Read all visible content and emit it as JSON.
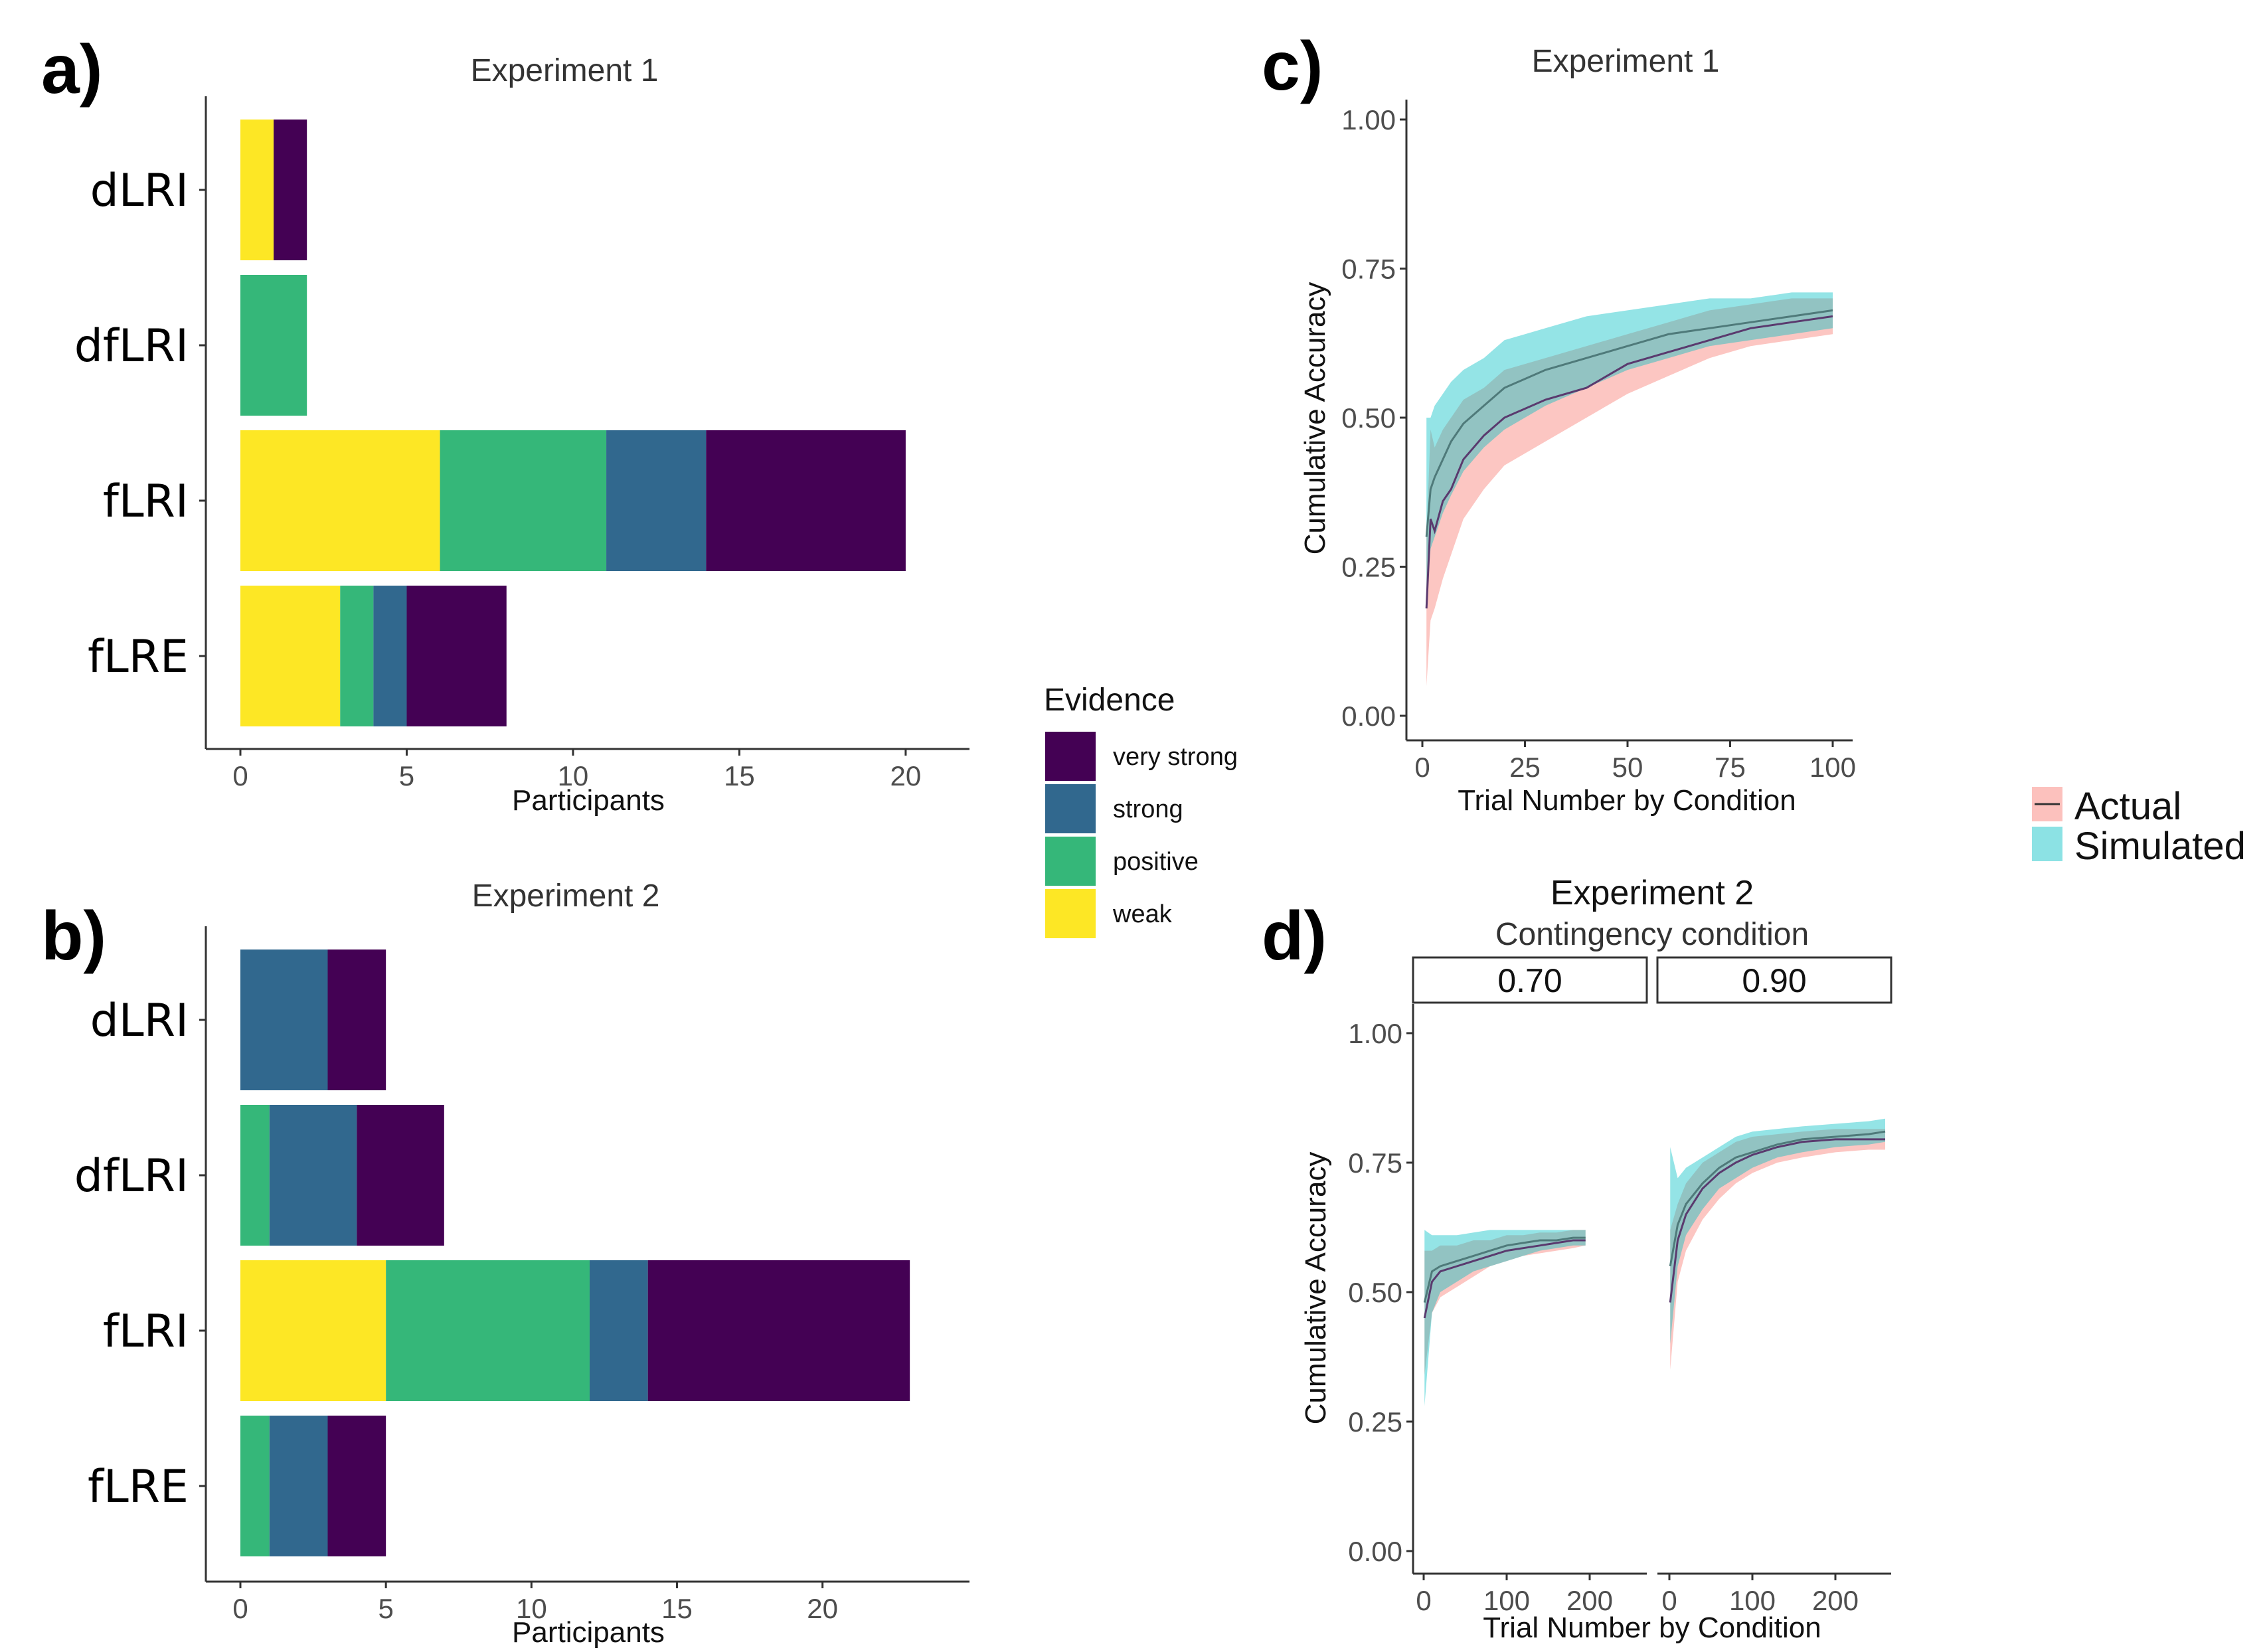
{
  "colors": {
    "very strong": "#440154",
    "strong": "#31688e",
    "positive": "#35b779",
    "weak": "#fde725",
    "actual": "#f8766d",
    "simulated": "#00bfc4"
  },
  "panel_letters": [
    "a)",
    "b)",
    "c)",
    "d)"
  ],
  "evidence_legend": {
    "title": "Evidence",
    "items": [
      "very strong",
      "strong",
      "positive",
      "weak"
    ]
  },
  "source_legend": {
    "items": [
      "Actual",
      "Simulated"
    ]
  },
  "chart_data": [
    {
      "panel": "a",
      "type": "bar",
      "orientation": "horizontal",
      "stacked": true,
      "title": "Experiment 1",
      "xlabel": "Participants",
      "ylabel": "",
      "categories": [
        "dLRI",
        "dfLRI",
        "fLRI",
        "fLRE"
      ],
      "xlim": [
        0,
        21
      ],
      "xticks": [
        0,
        5,
        10,
        15,
        20
      ],
      "series": [
        {
          "name": "weak",
          "values": [
            1,
            0,
            6,
            3
          ]
        },
        {
          "name": "positive",
          "values": [
            0,
            2,
            5,
            1
          ]
        },
        {
          "name": "strong",
          "values": [
            0,
            0,
            3,
            1
          ]
        },
        {
          "name": "very strong",
          "values": [
            1,
            0,
            6,
            3
          ]
        }
      ]
    },
    {
      "panel": "b",
      "type": "bar",
      "orientation": "horizontal",
      "stacked": true,
      "title": "Experiment 2",
      "xlabel": "Participants",
      "ylabel": "",
      "categories": [
        "dLRI",
        "dfLRI",
        "fLRI",
        "fLRE"
      ],
      "xlim": [
        0,
        24
      ],
      "xticks": [
        0,
        5,
        10,
        15,
        20
      ],
      "series": [
        {
          "name": "weak",
          "values": [
            0,
            0,
            5,
            0
          ]
        },
        {
          "name": "positive",
          "values": [
            0,
            1,
            7,
            1
          ]
        },
        {
          "name": "strong",
          "values": [
            3,
            3,
            2,
            2
          ]
        },
        {
          "name": "very strong",
          "values": [
            2,
            3,
            9,
            2
          ]
        }
      ]
    },
    {
      "panel": "c",
      "type": "area",
      "title": "Experiment 1",
      "xlabel": "Trial Number by Condition",
      "ylabel": "Cumulative Accuracy",
      "xlim": [
        0,
        100
      ],
      "ylim": [
        0,
        1
      ],
      "xticks": [
        0,
        25,
        50,
        75,
        100
      ],
      "yticks": [
        "0.00",
        "0.25",
        "0.50",
        "0.75",
        "1.00"
      ],
      "x": [
        1,
        2,
        3,
        5,
        7,
        10,
        15,
        20,
        30,
        40,
        50,
        60,
        70,
        80,
        90,
        100
      ],
      "series": [
        {
          "name": "Actual",
          "mean": [
            0.18,
            0.33,
            0.31,
            0.36,
            0.38,
            0.43,
            0.47,
            0.5,
            0.53,
            0.55,
            0.59,
            0.61,
            0.63,
            0.65,
            0.66,
            0.67
          ],
          "lower": [
            0.05,
            0.16,
            0.18,
            0.23,
            0.27,
            0.33,
            0.38,
            0.42,
            0.46,
            0.5,
            0.54,
            0.57,
            0.6,
            0.62,
            0.63,
            0.64
          ],
          "upper": [
            0.3,
            0.48,
            0.45,
            0.48,
            0.5,
            0.53,
            0.55,
            0.58,
            0.6,
            0.62,
            0.64,
            0.66,
            0.68,
            0.69,
            0.7,
            0.7
          ]
        },
        {
          "name": "Simulated",
          "mean": [
            0.3,
            0.38,
            0.4,
            0.43,
            0.46,
            0.49,
            0.52,
            0.55,
            0.58,
            0.6,
            0.62,
            0.64,
            0.65,
            0.66,
            0.67,
            0.68
          ],
          "lower": [
            0.2,
            0.28,
            0.3,
            0.34,
            0.37,
            0.41,
            0.45,
            0.48,
            0.52,
            0.55,
            0.58,
            0.6,
            0.62,
            0.63,
            0.64,
            0.65
          ],
          "upper": [
            0.5,
            0.5,
            0.52,
            0.54,
            0.56,
            0.58,
            0.6,
            0.63,
            0.65,
            0.67,
            0.68,
            0.69,
            0.7,
            0.7,
            0.71,
            0.71
          ]
        }
      ]
    },
    {
      "panel": "d",
      "type": "area",
      "title": "Experiment 2",
      "subtitle": "Contingency condition",
      "xlabel": "Trial Number by Condition",
      "ylabel": "Cumulative Accuracy",
      "ylim": [
        0,
        1
      ],
      "yticks": [
        "0.00",
        "0.25",
        "0.50",
        "0.75",
        "1.00"
      ],
      "facets": [
        {
          "label": "0.70",
          "xlim": [
            0,
            280
          ],
          "xticks": [
            0,
            100,
            200
          ],
          "x": [
            1,
            10,
            20,
            40,
            60,
            80,
            100,
            120,
            140,
            160,
            180,
            195
          ],
          "series": [
            {
              "name": "Actual",
              "mean": [
                0.45,
                0.52,
                0.54,
                0.55,
                0.56,
                0.57,
                0.58,
                0.585,
                0.59,
                0.595,
                0.6,
                0.6
              ],
              "lower": [
                0.34,
                0.46,
                0.49,
                0.51,
                0.53,
                0.55,
                0.56,
                0.57,
                0.575,
                0.58,
                0.585,
                0.59
              ],
              "upper": [
                0.58,
                0.58,
                0.59,
                0.59,
                0.6,
                0.6,
                0.61,
                0.61,
                0.615,
                0.615,
                0.62,
                0.62
              ]
            },
            {
              "name": "Simulated",
              "mean": [
                0.48,
                0.54,
                0.55,
                0.56,
                0.57,
                0.58,
                0.59,
                0.595,
                0.6,
                0.6,
                0.605,
                0.605
              ],
              "lower": [
                0.28,
                0.46,
                0.5,
                0.52,
                0.54,
                0.55,
                0.56,
                0.57,
                0.58,
                0.585,
                0.59,
                0.59
              ],
              "upper": [
                0.62,
                0.61,
                0.61,
                0.61,
                0.615,
                0.62,
                0.62,
                0.62,
                0.62,
                0.62,
                0.62,
                0.62
              ]
            }
          ]
        },
        {
          "label": "0.90",
          "xlim": [
            0,
            280
          ],
          "xticks": [
            0,
            100,
            200
          ],
          "x": [
            1,
            10,
            20,
            40,
            60,
            80,
            100,
            130,
            160,
            200,
            240,
            260
          ],
          "series": [
            {
              "name": "Actual",
              "mean": [
                0.48,
                0.6,
                0.65,
                0.7,
                0.73,
                0.75,
                0.765,
                0.78,
                0.79,
                0.795,
                0.795,
                0.795
              ],
              "lower": [
                0.35,
                0.52,
                0.58,
                0.64,
                0.68,
                0.71,
                0.73,
                0.75,
                0.76,
                0.77,
                0.775,
                0.775
              ],
              "upper": [
                0.62,
                0.67,
                0.71,
                0.75,
                0.77,
                0.79,
                0.8,
                0.805,
                0.81,
                0.815,
                0.815,
                0.815
              ]
            },
            {
              "name": "Simulated",
              "mean": [
                0.55,
                0.63,
                0.67,
                0.71,
                0.74,
                0.76,
                0.77,
                0.785,
                0.795,
                0.8,
                0.805,
                0.81
              ],
              "lower": [
                0.4,
                0.55,
                0.61,
                0.66,
                0.7,
                0.72,
                0.74,
                0.76,
                0.77,
                0.78,
                0.785,
                0.79
              ],
              "upper": [
                0.78,
                0.72,
                0.74,
                0.76,
                0.78,
                0.8,
                0.81,
                0.815,
                0.82,
                0.825,
                0.83,
                0.835
              ]
            }
          ]
        }
      ]
    }
  ]
}
